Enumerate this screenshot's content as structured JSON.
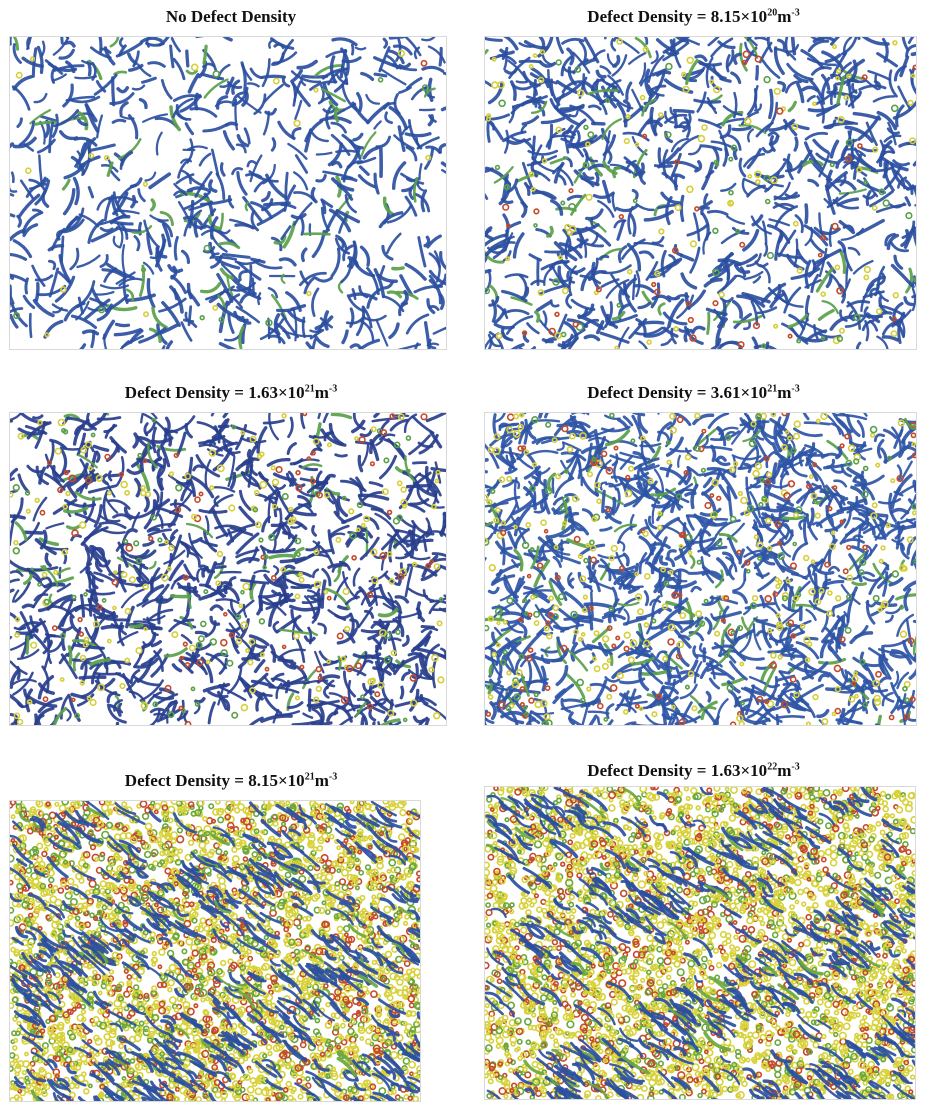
{
  "panels": [
    {
      "title": {
        "prefix": "No Defect Density",
        "mantissa": "",
        "exponent": "",
        "unit": "",
        "unit_exponent": ""
      },
      "defect_level": 0.02,
      "colors": {
        "blue": "#2b4fa0",
        "green": "#5aa04a",
        "yellow": "#d6cf3a",
        "red": "#c64a2a"
      }
    },
    {
      "title": {
        "prefix": "Defect Density = ",
        "mantissa": "8.15×10",
        "exponent": "20",
        "unit": "m",
        "unit_exponent": "-3"
      },
      "defect_level": 0.12,
      "colors": {
        "blue": "#2b4fa0",
        "green": "#5aa04a",
        "yellow": "#d6cf3a",
        "red": "#c64a2a"
      }
    },
    {
      "title": {
        "prefix": "Defect Density = ",
        "mantissa": "1.63×10",
        "exponent": "21",
        "unit": "m",
        "unit_exponent": "-3"
      },
      "defect_level": 0.2,
      "colors": {
        "blue": "#283f8e",
        "green": "#5aa04a",
        "yellow": "#d6cf3a",
        "red": "#c64a2a"
      }
    },
    {
      "title": {
        "prefix": "Defect Density = ",
        "mantissa": "3.61×10",
        "exponent": "21",
        "unit": "m",
        "unit_exponent": "-3"
      },
      "defect_level": 0.3,
      "colors": {
        "blue": "#2e55a6",
        "green": "#5aa04a",
        "yellow": "#d6cf3a",
        "red": "#c64a2a"
      }
    },
    {
      "title": {
        "prefix": "Defect Density = ",
        "mantissa": "8.15×10",
        "exponent": "21",
        "unit": "m",
        "unit_exponent": "-3"
      },
      "defect_level": 0.7,
      "colors": {
        "blue": "#2b4fa0",
        "green": "#6aa83e",
        "yellow": "#d8d23a",
        "red": "#c64a2a"
      }
    },
    {
      "title": {
        "prefix": "Defect Density = ",
        "mantissa": "1.63×10",
        "exponent": "22",
        "unit": "m",
        "unit_exponent": "-3"
      },
      "defect_level": 0.75,
      "colors": {
        "blue": "#2b4fa0",
        "green": "#6aa83e",
        "yellow": "#d8d23a",
        "red": "#c64a2a"
      }
    }
  ]
}
